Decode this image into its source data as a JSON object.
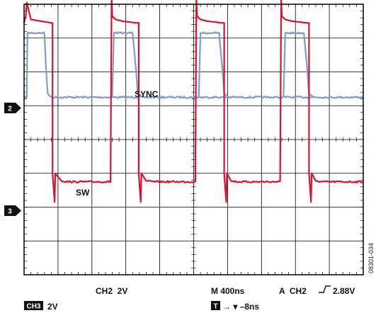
{
  "chart_data": {
    "type": "line",
    "title": "",
    "grid": true,
    "divisions": {
      "x": 10,
      "y": 8
    },
    "time_per_div_ns": 400,
    "trigger_delay_ns": -8,
    "series": [
      {
        "name": "SYNC",
        "channel": "2",
        "color": "#7f9ccb",
        "volts_per_div": 2,
        "ground_div": 5.25,
        "segments": [
          {
            "t_div": [
              0.0,
              0.08,
              0.1,
              0.6,
              0.65,
              0.7,
              0.8,
              10.0
            ],
            "v": [
              0,
              0,
              3.8,
              3.8,
              1.6,
              0.2,
              0,
              0
            ]
          },
          {
            "t_div": [
              2.6,
              2.65,
              3.2,
              3.3,
              3.35,
              3.5
            ],
            "v": [
              0,
              3.8,
              3.8,
              1.6,
              0.2,
              0
            ]
          },
          {
            "t_div": [
              5.15,
              5.2,
              5.75,
              5.85,
              5.9,
              6.05
            ],
            "v": [
              0,
              3.8,
              3.8,
              1.6,
              0.2,
              0
            ]
          },
          {
            "t_div": [
              7.65,
              7.7,
              8.25,
              8.35,
              8.4,
              8.55
            ],
            "v": [
              0,
              3.8,
              3.8,
              1.6,
              0.2,
              0
            ]
          }
        ]
      },
      {
        "name": "SW",
        "channel": "3",
        "color": "#d9132d",
        "volts_per_div": 2,
        "ground_div": 2.75,
        "segments": [
          {
            "t_div": [
              0.0,
              0.05,
              0.08,
              0.2,
              0.5,
              0.8,
              0.84,
              0.84,
              0.9,
              0.92,
              1.1,
              1.3,
              1.6,
              2.55,
              2.58,
              2.6,
              2.7,
              2.9,
              3.3,
              3.38,
              3.38,
              3.44,
              3.46,
              3.6,
              3.8,
              4.1,
              5.05,
              5.08,
              5.1,
              5.2,
              5.4,
              5.83,
              5.9,
              5.9,
              5.96,
              5.98,
              6.1,
              6.3,
              6.6,
              7.55,
              7.58,
              7.6,
              7.7,
              7.9,
              8.33,
              8.4,
              8.4,
              8.46,
              8.48,
              8.6,
              8.8,
              9.1,
              10.0
            ],
            "v": [
              9.4,
              9.8,
              10.6,
              9.6,
              9.5,
              9.4,
              9.4,
              0.5,
              -1.2,
              0.5,
              0.05,
              0,
              0,
              0,
              10.8,
              9.8,
              9.6,
              9.5,
              9.4,
              9.4,
              0.5,
              -1.2,
              0.5,
              0.05,
              0,
              0,
              0,
              10.8,
              9.8,
              9.6,
              9.5,
              9.4,
              9.4,
              0.5,
              -1.2,
              0.5,
              0.05,
              0,
              0,
              0,
              10.8,
              9.8,
              9.6,
              9.5,
              9.4,
              9.4,
              0.5,
              -1.2,
              0.5,
              0.05,
              0,
              0,
              0
            ]
          }
        ]
      }
    ],
    "labels": {
      "sync": "SYNC",
      "sw": "SW"
    },
    "markers": {
      "ch2": "2",
      "ch3": "3"
    },
    "readout": {
      "ch2_scale": "CH2  2V",
      "timebase": "M 400ns",
      "trigger_prefix": "A  CH2",
      "trigger_level": "2.88V",
      "ch3_badge": "CH3",
      "ch3_scale": "2V",
      "t_badge": "T",
      "delay": "→ ▾ –8ns"
    },
    "figure_id": "08301-034"
  }
}
